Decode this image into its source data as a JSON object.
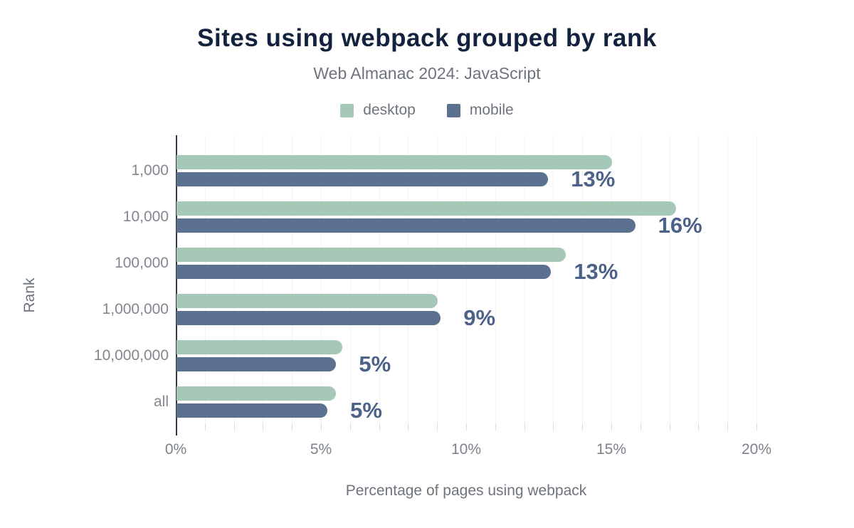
{
  "title": "Sites using webpack grouped by rank",
  "subtitle": "Web Almanac 2024: JavaScript",
  "colors": {
    "title": "#13233d",
    "subtitle_gray": "#6e737d",
    "axis_text_gray": "#7d828c",
    "desktop": "#a6c9b7",
    "mobile": "#5c7090",
    "data_label": "#4d6289",
    "axis_line": "#2d3849",
    "gridline": "#f2f2f5"
  },
  "chart_data": {
    "type": "bar",
    "orientation": "horizontal",
    "title": "Sites using webpack grouped by rank",
    "subtitle": "Web Almanac 2024: JavaScript",
    "categories": [
      "1,000",
      "10,000",
      "100,000",
      "1,000,000",
      "10,000,000",
      "all"
    ],
    "series": [
      {
        "name": "desktop",
        "color": "#a6c9b7",
        "values": [
          15.0,
          17.2,
          13.4,
          9.0,
          5.7,
          5.5
        ]
      },
      {
        "name": "mobile",
        "color": "#5c7090",
        "values": [
          12.8,
          15.8,
          12.9,
          9.1,
          5.5,
          5.2
        ]
      }
    ],
    "data_labels": [
      "13%",
      "16%",
      "13%",
      "9%",
      "5%",
      "5%"
    ],
    "data_labels_for_series": "mobile",
    "xlabel": "Percentage of pages using webpack",
    "ylabel": "Rank",
    "x_ticks": [
      "0%",
      "5%",
      "10%",
      "15%",
      "20%"
    ],
    "x_tick_values": [
      0,
      5,
      10,
      15,
      20
    ],
    "xlim": [
      0,
      22
    ],
    "grid": "vertical minor gridlines every 1%",
    "legend_position": "top-center"
  }
}
